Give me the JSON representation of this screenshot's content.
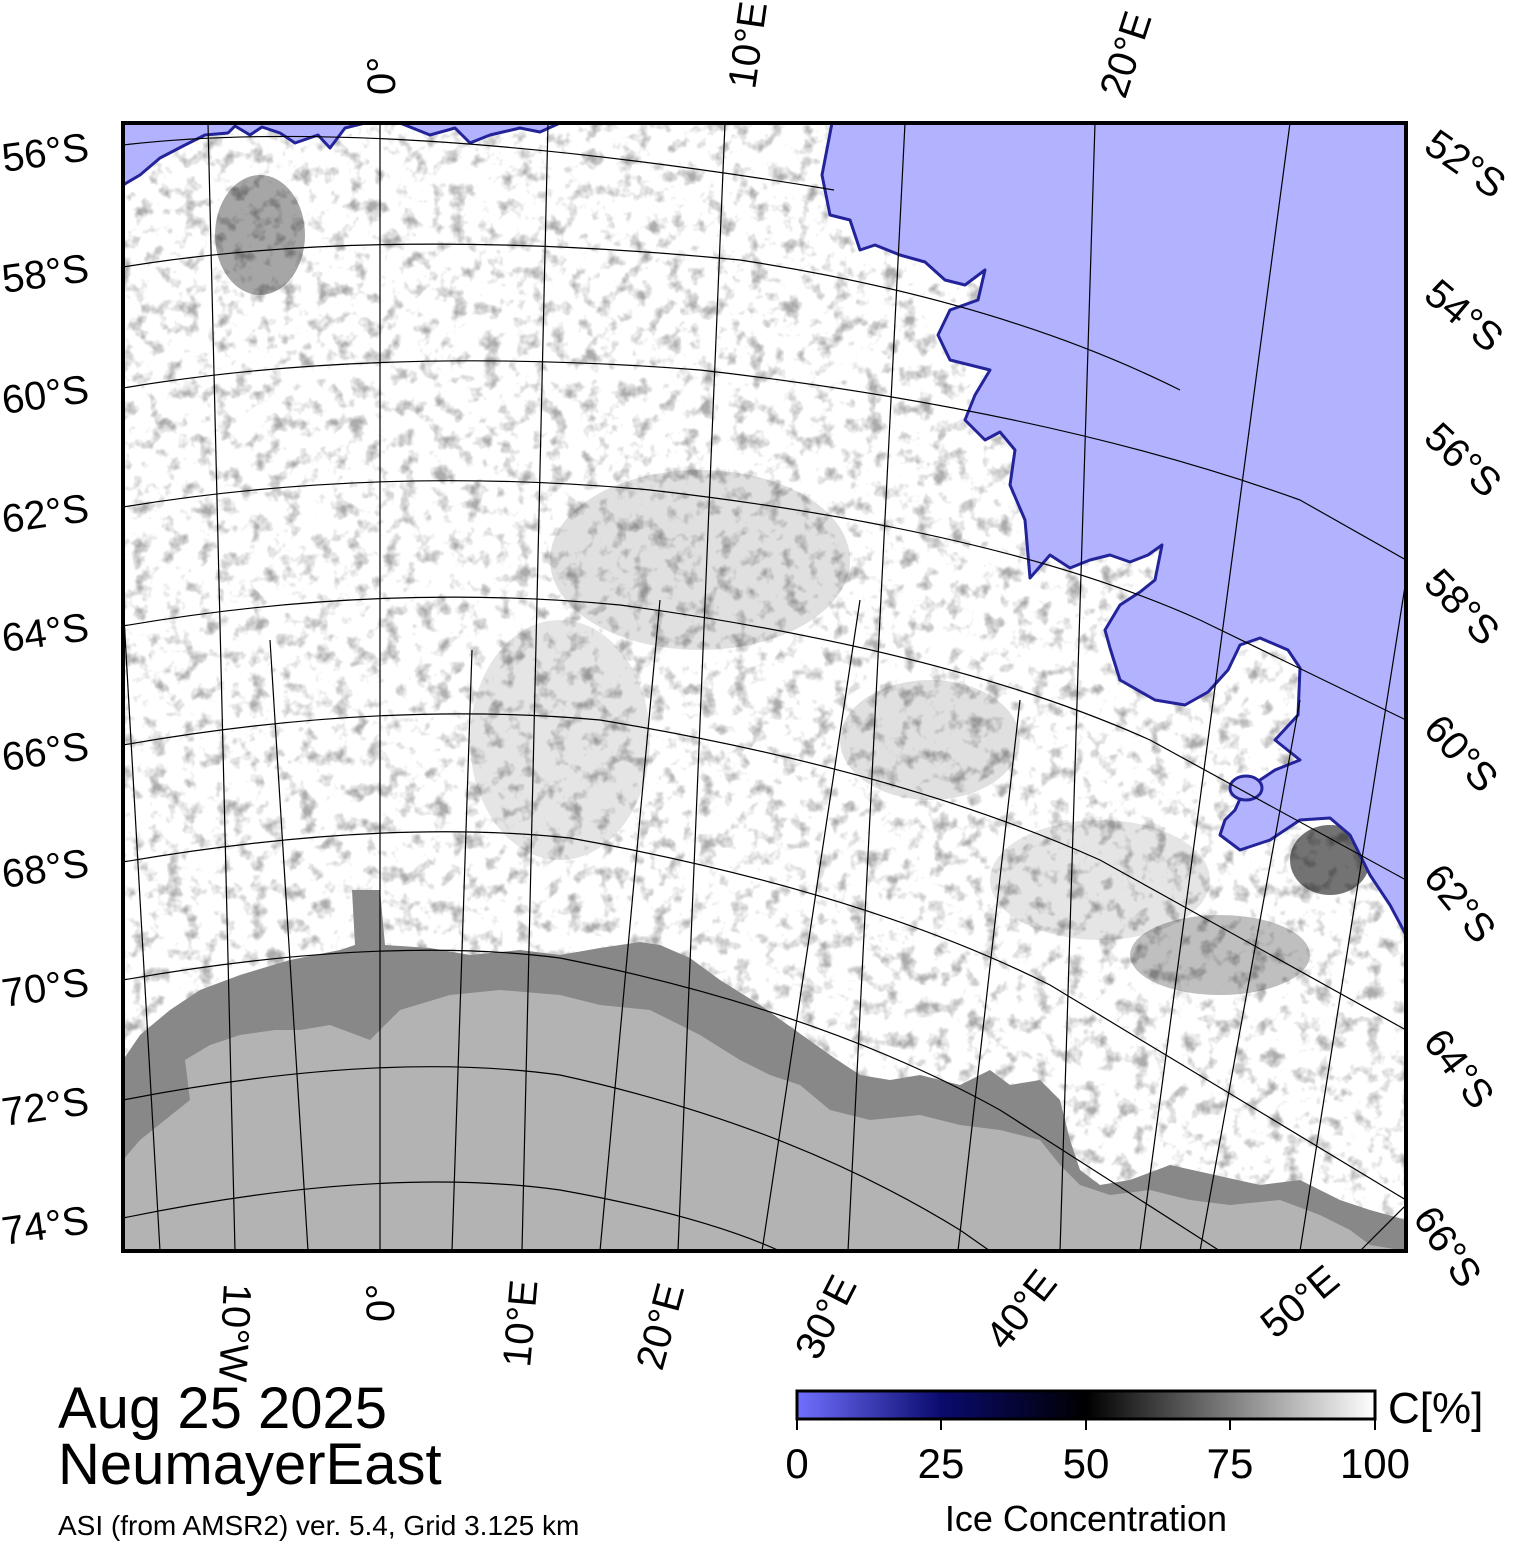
{
  "map": {
    "date": "Aug 25 2025",
    "region": "NeumayerEast",
    "source": "ASI (from AMSR2) ver. 5.4,  Grid 3.125 km",
    "colors": {
      "open_water": "#b2b2ff",
      "land": "#b3b3b3",
      "ice_shelf": "#888888",
      "graticule": "#000000"
    },
    "top_lon_labels": [
      "0°",
      "10°E",
      "20°E"
    ],
    "bottom_lon_labels": [
      "10°W",
      "0°",
      "10°E",
      "20°E",
      "30°E",
      "40°E",
      "50°E"
    ],
    "left_lat_labels": [
      "56°S",
      "58°S",
      "60°S",
      "62°S",
      "64°S",
      "66°S",
      "68°S",
      "70°S",
      "72°S",
      "74°S"
    ],
    "right_lat_labels": [
      "52°S",
      "54°S",
      "56°S",
      "58°S",
      "60°S",
      "62°S",
      "64°S",
      "66°S"
    ]
  },
  "colorbar": {
    "title": "Ice Concentration",
    "unit": "C[%]",
    "ticks": [
      "0",
      "25",
      "50",
      "75",
      "100"
    ],
    "stops": [
      {
        "value": 0,
        "color": "#7070ff"
      },
      {
        "value": 25,
        "color": "#0a0a6e"
      },
      {
        "value": 50,
        "color": "#000000"
      },
      {
        "value": 100,
        "color": "#ffffff"
      }
    ]
  }
}
